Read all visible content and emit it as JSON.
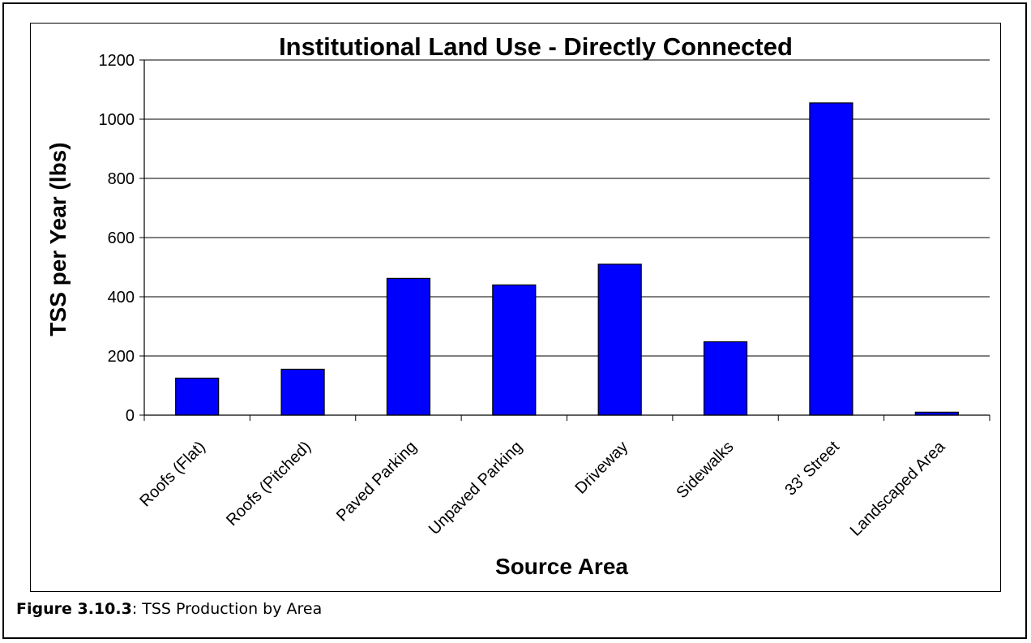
{
  "chart_data": {
    "type": "bar",
    "title": "Institutional Land Use - Directly Connected",
    "xlabel": "Source Area",
    "ylabel": "TSS per Year (lbs)",
    "categories": [
      "Roofs (Flat)",
      "Roofs (Pitched)",
      "Paved Parking",
      "Unpaved Parking",
      "Driveway",
      "Sidewalks",
      "33' Street",
      "Landscaped Area"
    ],
    "values": [
      125,
      155,
      462,
      440,
      510,
      248,
      1055,
      10
    ],
    "ylim": [
      0,
      1200
    ],
    "yticks": [
      0,
      200,
      400,
      600,
      800,
      1000,
      1200
    ],
    "grid": true,
    "legend": "none",
    "bar_color": "#0000FF"
  },
  "caption": {
    "label": "Figure 3.10.3",
    "text": ": TSS Production by Area"
  }
}
